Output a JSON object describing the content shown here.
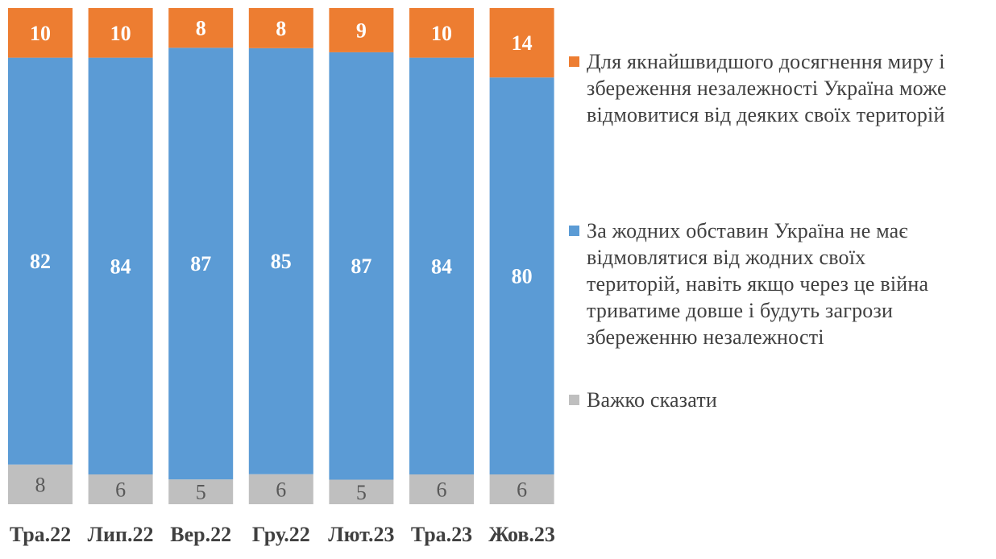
{
  "chart_data": {
    "type": "bar",
    "stacked": true,
    "normalized_percent": true,
    "categories": [
      "Тра.22",
      "Лип.22",
      "Вер.22",
      "Гру.22",
      "Лют.23",
      "Тра.23",
      "Жов.23"
    ],
    "series": [
      {
        "name": "Важко сказати",
        "color": "#bfbfbf",
        "label_color": "#595959",
        "values": [
          8,
          6,
          5,
          6,
          5,
          6,
          6
        ]
      },
      {
        "name": "За жодних обставин Україна не має відмовлятися від жодних своїх територій, навіть якщо через це війна триватиме довше і будуть загрози збереженню незалежності",
        "color": "#5b9bd5",
        "label_color": "#ffffff",
        "values": [
          82,
          84,
          87,
          85,
          87,
          84,
          80
        ]
      },
      {
        "name": "Для якнайшвидшого досягнення миру і збереження незалежності Україна може відмовитися від деяких своїх територій",
        "color": "#ed7d31",
        "label_color": "#ffffff",
        "values": [
          10,
          10,
          8,
          8,
          9,
          10,
          14
        ]
      }
    ],
    "legend_position": "right",
    "grid": false,
    "title": "",
    "xlabel": "",
    "ylabel": ""
  },
  "legend": {
    "items": [
      {
        "lines": [
          "Для якнайшвидшого досягнення миру і",
          "збереження незалежності Україна може",
          "відмовитися від деяких своїх територій"
        ]
      },
      {
        "lines": [
          "За жодних обставин Україна не має",
          "відмовлятися від жодних своїх",
          "територій, навіть якщо через це війна",
          "триватиме довше і будуть загрози",
          "збереженню незалежності"
        ]
      },
      {
        "lines": [
          "Важко сказати"
        ]
      }
    ]
  }
}
